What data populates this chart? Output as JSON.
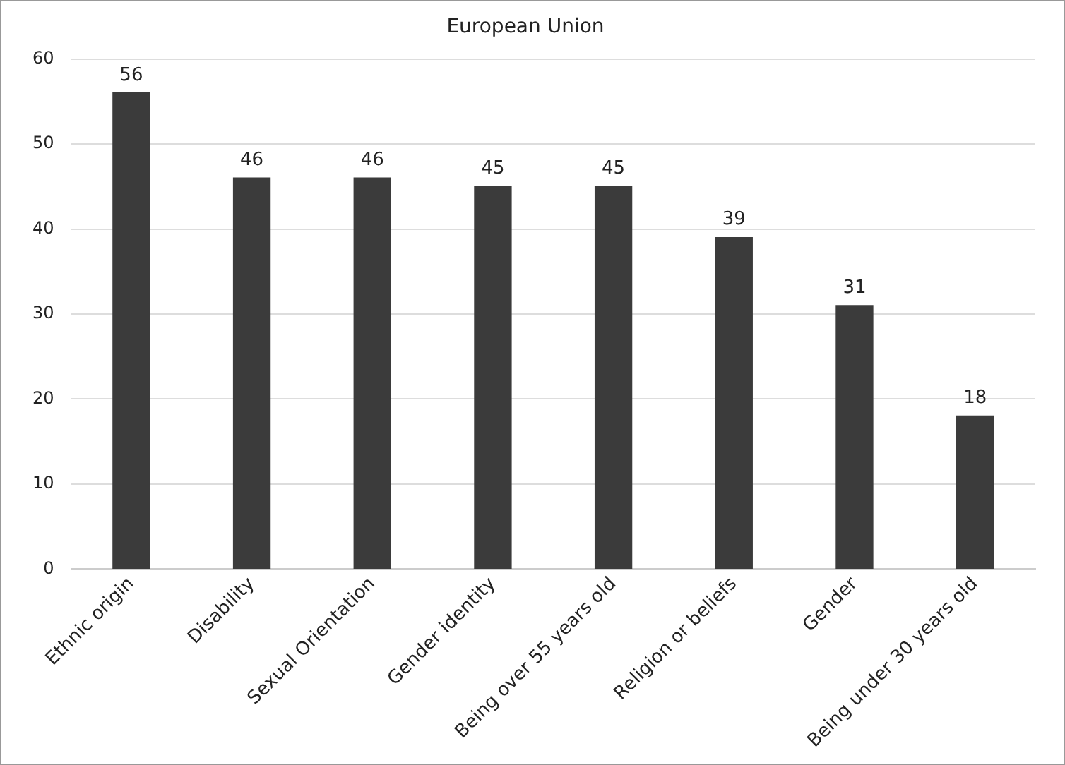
{
  "chart_data": {
    "type": "bar",
    "title": "European Union",
    "categories": [
      "Ethnic origin",
      "Disability",
      "Sexual Orientation",
      "Gender identity",
      "Being over 55 years old",
      "Religion or beliefs",
      "Gender",
      "Being under 30 years old"
    ],
    "values": [
      56,
      46,
      46,
      45,
      45,
      39,
      31,
      18
    ],
    "color": "#3b3b3b",
    "ylim": [
      0,
      60
    ],
    "yticks": [
      0,
      10,
      20,
      30,
      40,
      50,
      60
    ],
    "grid": "y",
    "data_labels": true,
    "legend": false
  }
}
